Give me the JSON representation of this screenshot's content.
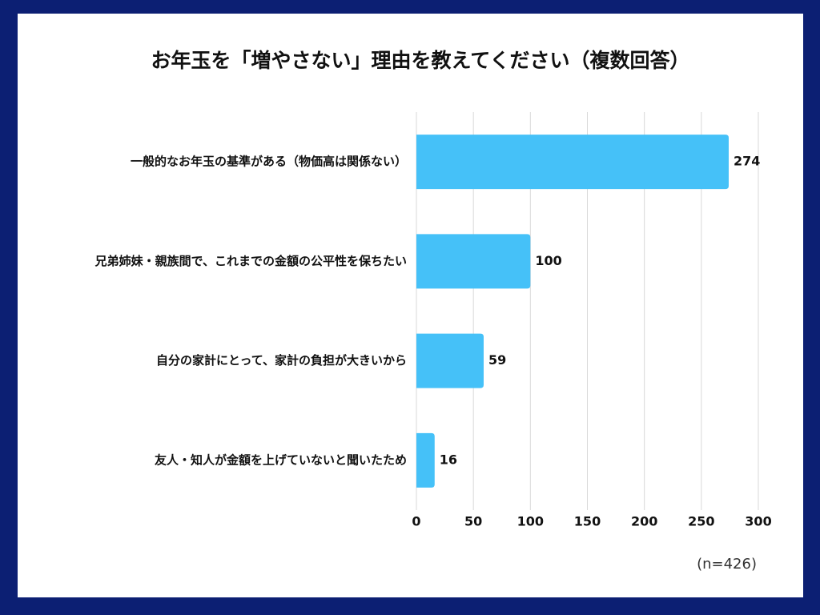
{
  "chart_data": {
    "type": "barh",
    "title": "お年玉を「増やさない」理由を教えてください（複数回答）",
    "categories": [
      "一般的なお年玉の基準がある（物価高は関係ない）",
      "兄弟姉妹・親族間で、これまでの金額の公平性を保ちたい",
      "自分の家計にとって、家計の負担が大きいから",
      "友人・知人が金額を上げていないと聞いたため"
    ],
    "values": [
      274,
      100,
      59,
      16
    ],
    "color": "#45c1f8",
    "xlim": [
      0,
      300
    ],
    "xticks": [
      0,
      50,
      100,
      150,
      200,
      250,
      300
    ],
    "grid": true,
    "annotation": "(n=426)"
  }
}
